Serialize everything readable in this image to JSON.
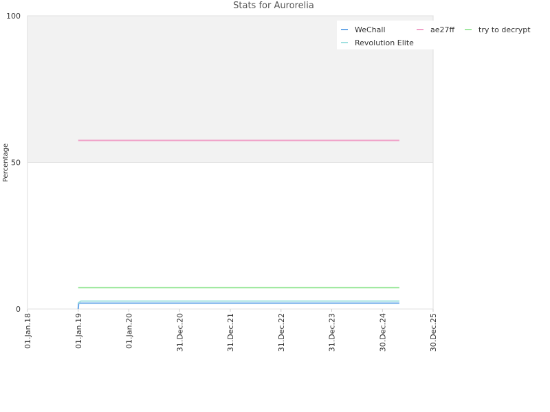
{
  "chart_data": {
    "type": "line",
    "title": "Stats for Aurorelia",
    "y_label": "Percentage",
    "xlim": [
      "2018-01-01",
      "2025-12-30"
    ],
    "xticks": [
      {
        "value": "2018-01-01",
        "label": "01.Jan.18"
      },
      {
        "value": "2019-01-01",
        "label": "01.Jan.19"
      },
      {
        "value": "2020-01-01",
        "label": "01.Jan.20"
      },
      {
        "value": "2020-12-31",
        "label": "31.Dec.20"
      },
      {
        "value": "2021-12-31",
        "label": "31.Dec.21"
      },
      {
        "value": "2022-12-31",
        "label": "31.Dec.22"
      },
      {
        "value": "2023-12-31",
        "label": "31.Dec.23"
      },
      {
        "value": "2024-12-30",
        "label": "30.Dec.24"
      },
      {
        "value": "2025-12-30",
        "label": "30.Dec.25"
      }
    ],
    "ylim": [
      0,
      100
    ],
    "yticks": [
      0,
      50,
      100
    ],
    "legend": "top-right",
    "series": [
      {
        "name": "WeChall",
        "color": "#6aa8e8",
        "x": [
          "2019-01-01",
          "2019-01-04",
          "2025-05-01"
        ],
        "values": [
          0,
          2,
          2
        ]
      },
      {
        "name": "ae27ff",
        "color": "#f0a0c8",
        "x": [
          "2019-01-01",
          "2025-05-01"
        ],
        "values": [
          57.5,
          57.5
        ]
      },
      {
        "name": "try to decrypt",
        "color": "#a0e8a0",
        "x": [
          "2019-01-01",
          "2025-05-01"
        ],
        "values": [
          7.3,
          7.3
        ]
      },
      {
        "name": "Revolution Elite",
        "color": "#a0e0e0",
        "x": [
          "2019-01-01",
          "2019-01-20",
          "2025-05-01"
        ],
        "values": [
          2,
          2.7,
          2.7
        ]
      }
    ]
  }
}
